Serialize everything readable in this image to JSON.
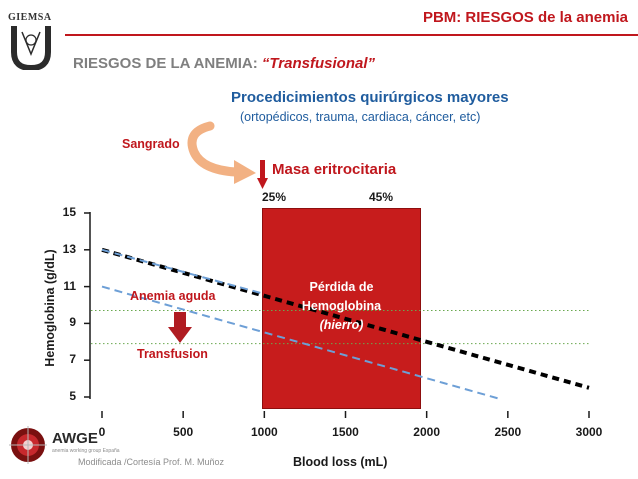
{
  "header": {
    "title": "PBM: RIESGOS de la anemia",
    "logo_text": "GIEMSA"
  },
  "subtitle": {
    "prefix": "RIESGOS DE LA ANEMIA: ",
    "highlight": "“Transfusional”"
  },
  "procedures": {
    "title": "Procedicimientos quirúrgicos mayores",
    "detail": "(ortopédicos, trauma, cardiaca, cáncer, etc)"
  },
  "labels": {
    "sangrado": "Sangrado",
    "masa": "Masa eritrocitaria",
    "pct1": "25%",
    "pct2": "45%",
    "box_line1": "Pérdida de",
    "box_line2": "Hemoglobina",
    "box_line3": "(hierro)",
    "anemia": "Anemia aguda",
    "transfusion": "Transfusion",
    "credit": "Modificada /Cortesía Prof. M. Muñoz",
    "awge": "AWGE",
    "awge_sub": "anemia working group España"
  },
  "colors": {
    "accent_red": "#c0171d",
    "blue": "#1f5c9e",
    "box_red": "#c71c1c",
    "dashed_blue": "#6d9fd6",
    "dotted_green": "#6aa84f"
  },
  "chart_data": {
    "type": "line",
    "xlabel": "Blood loss (mL)",
    "ylabel": "Hemoglobina (g/dL)",
    "xlim": [
      0,
      3000
    ],
    "ylim": [
      5,
      15
    ],
    "x_ticks": [
      "0",
      "500",
      "1000",
      "1500",
      "2000",
      "2500",
      "3000"
    ],
    "y_ticks": [
      "5",
      "7",
      "9",
      "11",
      "13",
      "15"
    ],
    "series": [
      {
        "style": "dashed-black",
        "x": [
          0,
          3000
        ],
        "y": [
          13.0,
          5.5
        ]
      },
      {
        "style": "dashed-blue",
        "x": [
          0,
          2450
        ],
        "y": [
          11.0,
          4.9
        ]
      },
      {
        "style": "dashed-blue",
        "x": [
          0,
          1000
        ],
        "y": [
          13.0,
          10.6
        ]
      }
    ],
    "reference_lines": [
      9.7,
      7.9
    ],
    "shaded_region": {
      "x": [
        1000,
        2000
      ]
    }
  }
}
